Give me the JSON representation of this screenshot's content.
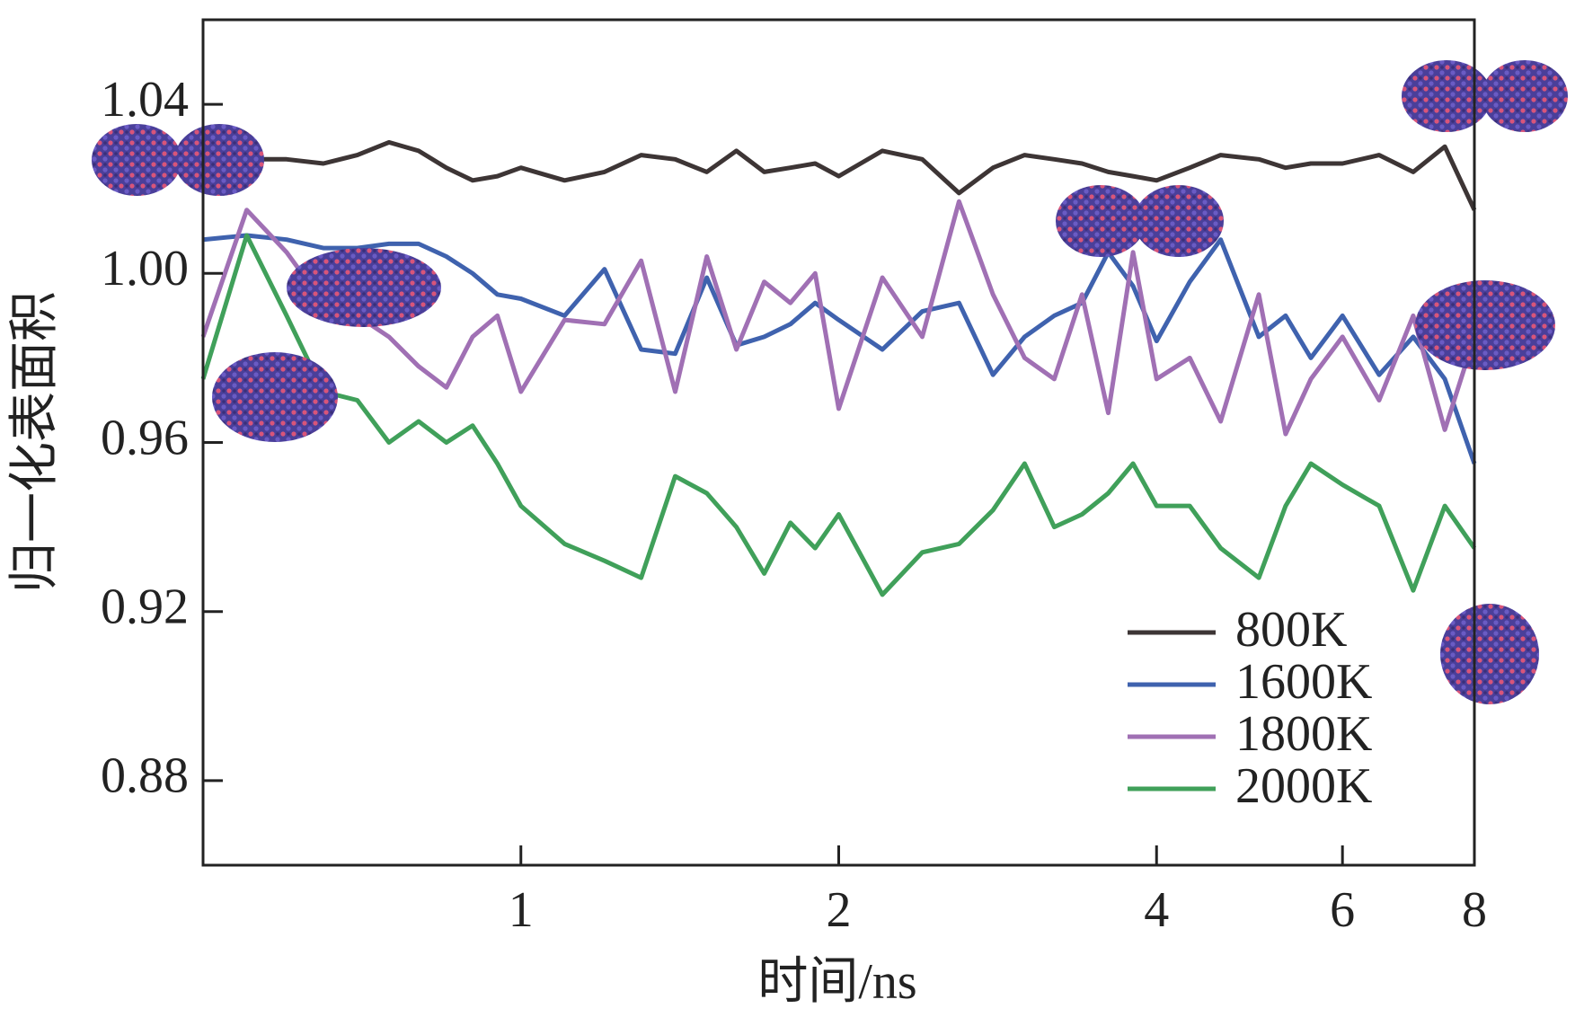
{
  "chart_data": {
    "type": "line",
    "xlabel": "时间/ns",
    "ylabel": "归一化表面积",
    "xscale": "log",
    "xlim": [
      0.5,
      8
    ],
    "xticks": [
      1,
      2,
      4,
      6,
      8
    ],
    "ylim": [
      0.86,
      1.06
    ],
    "yticks": [
      0.88,
      0.92,
      0.96,
      {
        "value": 1,
        "label": "1.00"
      },
      1.04
    ],
    "legend": "lower right",
    "x": [
      0.5,
      0.55,
      0.6,
      0.65,
      0.7,
      0.75,
      0.8,
      0.85,
      0.9,
      0.95,
      1.0,
      1.1,
      1.2,
      1.3,
      1.4,
      1.5,
      1.6,
      1.7,
      1.8,
      1.9,
      2.0,
      2.2,
      2.4,
      2.6,
      2.8,
      3.0,
      3.2,
      3.4,
      3.6,
      3.8,
      4.0,
      4.3,
      4.6,
      5.0,
      5.3,
      5.6,
      6.0,
      6.5,
      7.0,
      7.5,
      8.0
    ],
    "series": [
      {
        "name": "800K",
        "color": "#3d3535",
        "values": [
          null,
          1.027,
          1.027,
          1.026,
          1.028,
          1.031,
          1.029,
          1.025,
          1.022,
          1.023,
          1.025,
          1.022,
          1.024,
          1.028,
          1.027,
          1.024,
          1.029,
          1.024,
          1.025,
          1.026,
          1.023,
          1.029,
          1.027,
          1.019,
          1.025,
          1.028,
          1.027,
          1.026,
          1.024,
          1.023,
          1.022,
          1.025,
          1.028,
          1.027,
          1.025,
          1.026,
          1.026,
          1.028,
          1.024,
          1.03,
          1.015
        ]
      },
      {
        "name": "1600K",
        "color": "#3f62ae",
        "values": [
          1.008,
          1.009,
          1.008,
          1.006,
          1.006,
          1.007,
          1.007,
          1.004,
          1.0,
          0.995,
          0.994,
          0.99,
          1.001,
          0.982,
          0.981,
          0.999,
          0.983,
          0.985,
          0.988,
          0.993,
          0.989,
          0.982,
          0.991,
          0.993,
          0.976,
          0.985,
          0.99,
          0.993,
          1.005,
          0.997,
          0.984,
          0.998,
          1.008,
          0.985,
          0.99,
          0.98,
          0.99,
          0.976,
          0.985,
          0.975,
          0.955
        ]
      },
      {
        "name": "1800K",
        "color": "#a070b4",
        "values": [
          0.985,
          1.015,
          1.005,
          0.993,
          0.99,
          0.985,
          0.978,
          0.973,
          0.985,
          0.99,
          0.972,
          0.989,
          0.988,
          1.003,
          0.972,
          1.004,
          0.982,
          0.998,
          0.993,
          1.0,
          0.968,
          0.999,
          0.985,
          1.017,
          0.995,
          0.98,
          0.975,
          0.995,
          0.967,
          1.005,
          0.975,
          0.98,
          0.965,
          0.995,
          0.962,
          0.975,
          0.985,
          0.97,
          0.99,
          0.963,
          0.985
        ]
      },
      {
        "name": "2000K",
        "color": "#40a05a",
        "values": [
          0.975,
          1.009,
          0.99,
          0.972,
          0.97,
          0.96,
          0.965,
          0.96,
          0.964,
          0.955,
          0.945,
          0.936,
          0.932,
          0.928,
          0.952,
          0.948,
          0.94,
          0.929,
          0.941,
          0.935,
          0.943,
          0.924,
          0.934,
          0.936,
          0.944,
          0.955,
          0.94,
          0.943,
          0.948,
          0.955,
          0.945,
          0.945,
          0.935,
          0.928,
          0.945,
          0.955,
          0.95,
          0.945,
          0.925,
          0.945,
          0.935
        ]
      }
    ]
  }
}
